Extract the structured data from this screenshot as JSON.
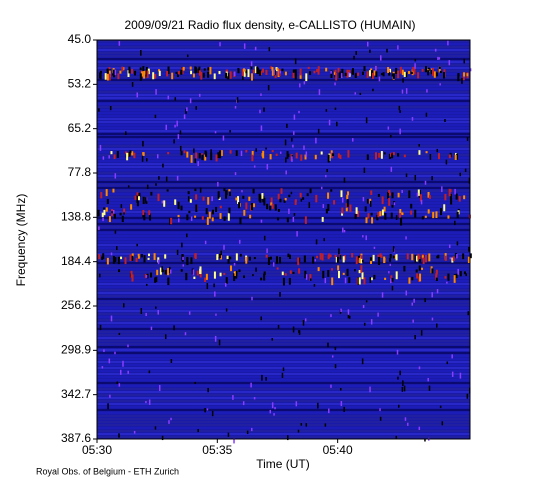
{
  "chart_data": {
    "type": "spectrogram",
    "title": "2009/09/21  Radio flux density, e-CALLISTO (HUMAIN)",
    "x_label": "Time (UT)",
    "y_label": "Frequency (MHz)",
    "footer": "Royal Obs. of Belgium - ETH Zurich",
    "xlim": [
      330,
      345.5
    ],
    "xticks": [
      {
        "value": 330,
        "label": "05:30"
      },
      {
        "value": 335,
        "label": "05:35"
      },
      {
        "value": 340,
        "label": "05:40"
      }
    ],
    "ylim": [
      45,
      387.6
    ],
    "yscale": "channel",
    "yticks": [
      {
        "value": 45,
        "label": "45.0"
      },
      {
        "value": 53.2,
        "label": "53.2"
      },
      {
        "value": 65.2,
        "label": "65.2"
      },
      {
        "value": 77.8,
        "label": "77.8"
      },
      {
        "value": 138.8,
        "label": "138.8"
      },
      {
        "value": 184.4,
        "label": "184.4"
      },
      {
        "value": 256.2,
        "label": "256.2"
      },
      {
        "value": 298.9,
        "label": "298.9"
      },
      {
        "value": 342.7,
        "label": "342.7"
      },
      {
        "value": 387.6,
        "label": "387.6"
      }
    ]
  }
}
